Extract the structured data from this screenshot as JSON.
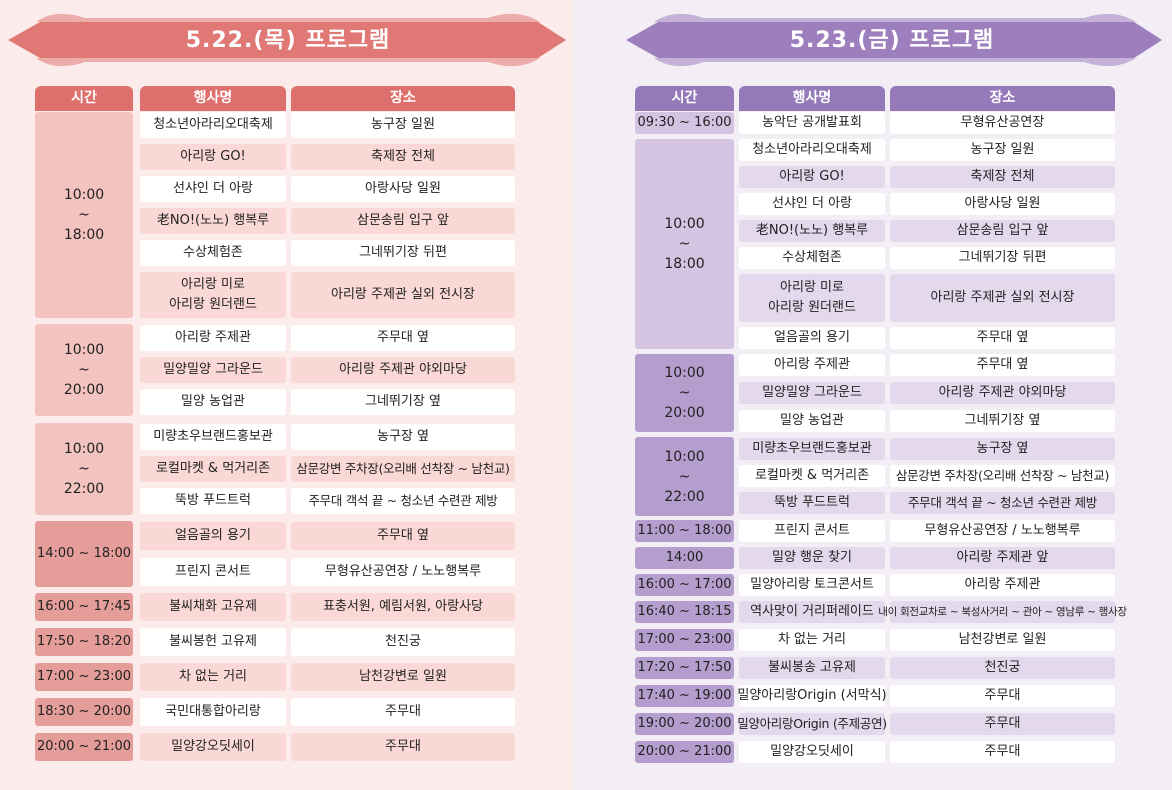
{
  "colors": {
    "left_accent": "#e07975",
    "left_header": "#dd6f6c",
    "left_bg": "#fbeceb",
    "left_time_light": "#f3c3c0",
    "left_time_dark": "#e59d99",
    "left_row_pink": "#f9d8d5",
    "right_accent": "#9d7fbd",
    "right_header": "#9579b8",
    "right_bg": "#f3eef5",
    "right_time_light": "#d4c3e1",
    "right_time_dark": "#b59dcd",
    "right_row_purple": "#e4d9ec",
    "white": "#ffffff"
  },
  "left": {
    "title": "5.22.(목) 프로그램",
    "headers": {
      "time": "시간",
      "event": "행사명",
      "venue": "장소"
    },
    "groups": [
      {
        "time_start": "10:00",
        "time_sep": "~",
        "time_end": "18:00",
        "rows": [
          {
            "event": "청소년아라리오대축제",
            "venue": "농구장 일원"
          },
          {
            "event": "아리랑 GO!",
            "venue": "축제장 전체"
          },
          {
            "event": "선샤인 더 아랑",
            "venue": "아랑사당 일원"
          },
          {
            "event": "老NO!(노노) 행복루",
            "venue": "삼문송림 입구 앞"
          },
          {
            "event": "수상체험존",
            "venue": "그네뛰기장 뒤편"
          },
          {
            "event_line1": "아리랑 미로",
            "event_line2": "아리랑 원더랜드",
            "venue": "아리랑 주제관 실외 전시장"
          }
        ]
      },
      {
        "time_start": "10:00",
        "time_sep": "~",
        "time_end": "20:00",
        "rows": [
          {
            "event": "아리랑 주제관",
            "venue": "주무대 옆"
          },
          {
            "event": "밀양밀양 그라운드",
            "venue": "아리랑 주제관 야외마당"
          },
          {
            "event": "밀양 농업관",
            "venue": "그네뛰기장 옆"
          }
        ]
      },
      {
        "time_start": "10:00",
        "time_sep": "~",
        "time_end": "22:00",
        "rows": [
          {
            "event": "미량초우브랜드홍보관",
            "venue": "농구장 옆"
          },
          {
            "event": "로컬마켓 & 먹거리존",
            "venue": "삼문강변 주차장(오리배 선착장 ~ 남천교)"
          },
          {
            "event": "뚝방 푸드트럭",
            "venue": "주무대 객석 끝 ~ 청소년 수련관 제방"
          }
        ]
      },
      {
        "time": "14:00 ~ 18:00",
        "rows": [
          {
            "event": "얼음골의 용기",
            "venue": "주무대 옆"
          },
          {
            "event": "프린지 콘서트",
            "venue": "무형유산공연장 / 노노행복루"
          }
        ]
      }
    ],
    "singles": [
      {
        "time": "16:00 ~ 17:45",
        "event": "불씨채화 고유제",
        "venue": "표충서원, 예림서원, 아랑사당"
      },
      {
        "time": "17:50 ~ 18:20",
        "event": "불씨봉헌 고유제",
        "venue": "천진궁"
      },
      {
        "time": "17:00 ~ 23:00",
        "event": "차 없는 거리",
        "venue": "남천강변로 일원"
      },
      {
        "time": "18:30 ~ 20:00",
        "event": "국민대통합아리랑",
        "venue": "주무대"
      },
      {
        "time": "20:00 ~ 21:00",
        "event": "밀양강오딧세이",
        "venue": "주무대"
      }
    ]
  },
  "right": {
    "title": "5.23.(금) 프로그램",
    "headers": {
      "time": "시간",
      "event": "행사명",
      "venue": "장소"
    },
    "first": {
      "time": "09:30 ~ 16:00",
      "event": "농악단 공개발표회",
      "venue": "무형유산공연장"
    },
    "groups": [
      {
        "time_start": "10:00",
        "time_sep": "~",
        "time_end": "18:00",
        "rows": [
          {
            "event": "청소년아라리오대축제",
            "venue": "농구장 일원"
          },
          {
            "event": "아리랑 GO!",
            "venue": "축제장 전체"
          },
          {
            "event": "선샤인 더 아랑",
            "venue": "아랑사당 일원"
          },
          {
            "event": "老NO!(노노) 행복루",
            "venue": "삼문송림 입구 앞"
          },
          {
            "event": "수상체험존",
            "venue": "그네뛰기장 뒤편"
          },
          {
            "event_line1": "아리랑 미로",
            "event_line2": "아리랑 원더랜드",
            "venue": "아리랑 주제관 실외 전시장"
          },
          {
            "event": "얼음골의 용기",
            "venue": "주무대 옆"
          }
        ]
      },
      {
        "time_start": "10:00",
        "time_sep": "~",
        "time_end": "20:00",
        "rows": [
          {
            "event": "아리랑 주제관",
            "venue": "주무대 옆"
          },
          {
            "event": "밀양밀양 그라운드",
            "venue": "아리랑 주제관 야외마당"
          },
          {
            "event": "밀양 농업관",
            "venue": "그네뛰기장 옆"
          }
        ]
      },
      {
        "time_start": "10:00",
        "time_sep": "~",
        "time_end": "22:00",
        "rows": [
          {
            "event": "미량초우브랜드홍보관",
            "venue": "농구장 옆"
          },
          {
            "event": "로컬마켓 & 먹거리존",
            "venue": "삼문강변 주차장(오리배 선착장 ~ 남천교)"
          },
          {
            "event": "뚝방 푸드트럭",
            "venue": "주무대 객석 끝 ~ 청소년 수련관 제방"
          }
        ]
      }
    ],
    "singles": [
      {
        "time": "11:00 ~ 18:00",
        "event": "프린지 콘서트",
        "venue": "무형유산공연장 / 노노행복루"
      },
      {
        "time": "14:00",
        "event": "밀양 행운 찾기",
        "venue": "아리랑 주제관 앞"
      },
      {
        "time": "16:00 ~ 17:00",
        "event": "밀양아리랑 토크콘서트",
        "venue": "아리랑 주제관"
      },
      {
        "time": "16:40 ~ 18:15",
        "event": "역사맞이 거리퍼레이드",
        "venue": "내이 회전교차로 ~ 북성사거리 ~ 관아 ~ 영남루 ~ 행사장"
      },
      {
        "time": "17:00 ~ 23:00",
        "event": "차 없는 거리",
        "venue": "남천강변로 일원"
      },
      {
        "time": "17:20 ~ 17:50",
        "event": "불씨봉송 고유제",
        "venue": "천진궁"
      },
      {
        "time": "17:40 ~ 19:00",
        "event": "밀양아리랑Origin (서막식)",
        "venue": "주무대"
      },
      {
        "time": "19:00 ~ 20:00",
        "event": "밀양아리랑Origin (주제공연)",
        "venue": "주무대"
      },
      {
        "time": "20:00 ~ 21:00",
        "event": "밀양강오딧세이",
        "venue": "주무대"
      }
    ]
  }
}
